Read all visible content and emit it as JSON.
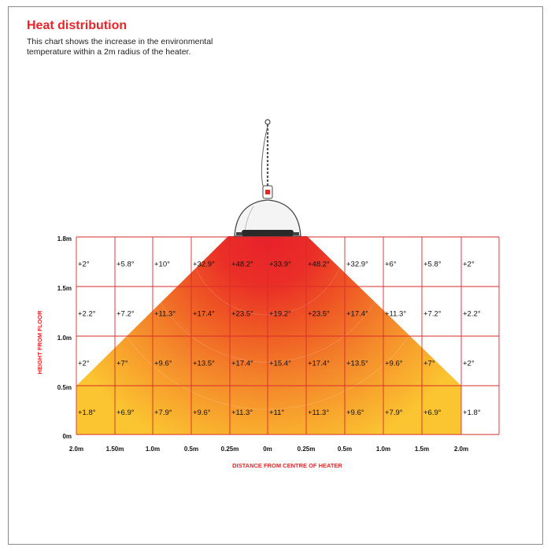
{
  "header": {
    "title": "Heat distribution",
    "description": "This chart shows the increase in the environmental temperature within a 2m radius of the heater."
  },
  "colors": {
    "accent": "#e8252a",
    "grid": "#d92b2b",
    "heat_outer": "#fbc02d",
    "heat_inner": "#e8232a"
  },
  "chart_data": {
    "type": "heatmap",
    "title": "Heat distribution",
    "xlabel": "DISTANCE FROM CENTRE OF HEATER",
    "ylabel": "HEIGHT FROM FLOOR",
    "x_ticks": [
      "2.0m",
      "1.50m",
      "1.0m",
      "0.5m",
      "0.25m",
      "0m",
      "0.25m",
      "0.5m",
      "1.0m",
      "1.5m",
      "2.0m"
    ],
    "y_ticks": [
      "1.8m",
      "1.5m",
      "1.0m",
      "0.5m",
      "0m"
    ],
    "rows": [
      {
        "height": "1.5m–1.8m",
        "values": [
          "+2°",
          "+5.8°",
          "+10°",
          "+32.9°",
          "+48.2°",
          "+33.9°",
          "+48.2°",
          "+32.9°",
          "+6°",
          "+5.8°",
          "+2°"
        ]
      },
      {
        "height": "1.0m–1.5m",
        "values": [
          "+2.2°",
          "+7.2°",
          "+11.3°",
          "+17.4°",
          "+23.5°",
          "+19.2°",
          "+23.5°",
          "+17.4°",
          "+11.3°",
          "+7.2°",
          "+2.2°"
        ]
      },
      {
        "height": "0.5m–1.0m",
        "values": [
          "+2°",
          "+7°",
          "+9.6°",
          "+13.5°",
          "+17.4°",
          "+15.4°",
          "+17.4°",
          "+13.5°",
          "+9.6°",
          "+7°",
          "+2°"
        ]
      },
      {
        "height": "0m–0.5m",
        "values": [
          "+1.8°",
          "+6.9°",
          "+7.9°",
          "+9.6°",
          "+11.3°",
          "+11°",
          "+11.3°",
          "+9.6°",
          "+7.9°",
          "+6.9°",
          "+1.8°"
        ]
      }
    ]
  }
}
